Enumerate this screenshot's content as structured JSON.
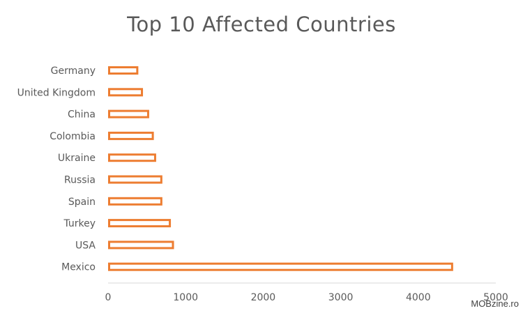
{
  "chart_data": {
    "type": "bar",
    "orientation": "horizontal",
    "title": "Top 10 Affected Countries",
    "categories": [
      "Germany",
      "United Kingdom",
      "China",
      "Colombia",
      "Ukraine",
      "Russia",
      "Spain",
      "Turkey",
      "USA",
      "Mexico"
    ],
    "values": [
      390,
      450,
      530,
      590,
      620,
      700,
      700,
      810,
      850,
      4450
    ],
    "xlim": [
      0,
      5000
    ],
    "xticks": [
      0,
      1000,
      2000,
      3000,
      4000,
      5000
    ],
    "grid": false,
    "legend": "none",
    "bar_color": "#ED7D31",
    "bar_fill": "#ffffff"
  },
  "watermark": "MOBzine.ro"
}
